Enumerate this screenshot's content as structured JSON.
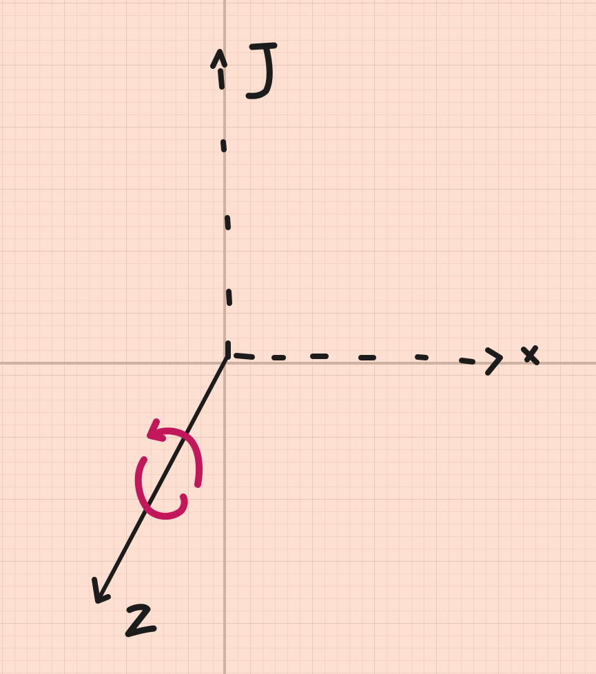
{
  "colors": {
    "background": "#fde0d2",
    "grid_minor": "#e9c4b3",
    "grid_major": "#dbb7a6",
    "center_line": "#cfb1a2",
    "ink": "#1c1c1c",
    "rotation": "#c2185b"
  },
  "axes": {
    "y": {
      "name": "y-axis",
      "label": "y",
      "style": "dashed",
      "arrow": true
    },
    "x": {
      "name": "x-axis",
      "label": "x",
      "style": "dashed",
      "arrow": true
    },
    "z": {
      "name": "z-axis",
      "label": "z",
      "style": "solid",
      "arrow": true
    }
  },
  "rotation": {
    "about_axis": "z",
    "direction": "counterclockwise"
  }
}
